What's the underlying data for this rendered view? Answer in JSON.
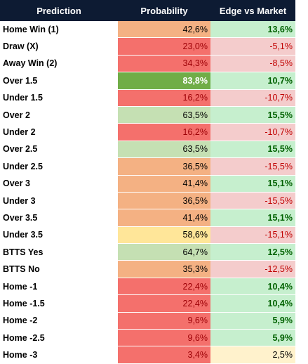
{
  "table": {
    "headers": [
      "Prediction",
      "Probability",
      "Edge vs Market"
    ],
    "rows": [
      {
        "prediction": "Home Win (1)",
        "probability": "42,6%",
        "edge": "13,6%",
        "prob_fill": "#f4b183",
        "prob_text": "#000000",
        "edge_fill": "#c6efce",
        "edge_text": "#006100"
      },
      {
        "prediction": "Draw (X)",
        "probability": "23,0%",
        "edge": "-5,1%",
        "prob_fill": "#f4706c",
        "prob_text": "#9c0006",
        "edge_fill": "#f4cccc",
        "edge_text": "#c00000"
      },
      {
        "prediction": "Away Win (2)",
        "probability": "34,3%",
        "edge": "-8,5%",
        "prob_fill": "#f4706c",
        "prob_text": "#9c0006",
        "edge_fill": "#f4cccc",
        "edge_text": "#c00000"
      },
      {
        "prediction": "Over 1.5",
        "probability": "83,8%",
        "edge": "10,7%",
        "prob_fill": "#70ad47",
        "prob_text": "#ffffff",
        "edge_fill": "#c6efce",
        "edge_text": "#006100"
      },
      {
        "prediction": "Under 1.5",
        "probability": "16,2%",
        "edge": "-10,7%",
        "prob_fill": "#f4706c",
        "prob_text": "#9c0006",
        "edge_fill": "#f4cccc",
        "edge_text": "#c00000"
      },
      {
        "prediction": "Over 2",
        "probability": "63,5%",
        "edge": "15,5%",
        "prob_fill": "#c5e0b3",
        "prob_text": "#000000",
        "edge_fill": "#c6efce",
        "edge_text": "#006100"
      },
      {
        "prediction": "Under 2",
        "probability": "16,2%",
        "edge": "-10,7%",
        "prob_fill": "#f4706c",
        "prob_text": "#9c0006",
        "edge_fill": "#f4cccc",
        "edge_text": "#c00000"
      },
      {
        "prediction": "Over 2.5",
        "probability": "63,5%",
        "edge": "15,5%",
        "prob_fill": "#c5e0b3",
        "prob_text": "#000000",
        "edge_fill": "#c6efce",
        "edge_text": "#006100"
      },
      {
        "prediction": "Under 2.5",
        "probability": "36,5%",
        "edge": "-15,5%",
        "prob_fill": "#f4b183",
        "prob_text": "#000000",
        "edge_fill": "#f4cccc",
        "edge_text": "#c00000"
      },
      {
        "prediction": "Over 3",
        "probability": "41,4%",
        "edge": "15,1%",
        "prob_fill": "#f4b183",
        "prob_text": "#000000",
        "edge_fill": "#c6efce",
        "edge_text": "#006100"
      },
      {
        "prediction": "Under 3",
        "probability": "36,5%",
        "edge": "-15,5%",
        "prob_fill": "#f4b183",
        "prob_text": "#000000",
        "edge_fill": "#f4cccc",
        "edge_text": "#c00000"
      },
      {
        "prediction": "Over 3.5",
        "probability": "41,4%",
        "edge": "15,1%",
        "prob_fill": "#f4b183",
        "prob_text": "#000000",
        "edge_fill": "#c6efce",
        "edge_text": "#006100"
      },
      {
        "prediction": "Under 3.5",
        "probability": "58,6%",
        "edge": "-15,1%",
        "prob_fill": "#ffe699",
        "prob_text": "#000000",
        "edge_fill": "#f4cccc",
        "edge_text": "#c00000"
      },
      {
        "prediction": "BTTS Yes",
        "probability": "64,7%",
        "edge": "12,5%",
        "prob_fill": "#c5e0b3",
        "prob_text": "#000000",
        "edge_fill": "#c6efce",
        "edge_text": "#006100"
      },
      {
        "prediction": "BTTS No",
        "probability": "35,3%",
        "edge": "-12,5%",
        "prob_fill": "#f4b183",
        "prob_text": "#000000",
        "edge_fill": "#f4cccc",
        "edge_text": "#c00000"
      },
      {
        "prediction": "Home -1",
        "probability": "22,4%",
        "edge": "10,4%",
        "prob_fill": "#f4706c",
        "prob_text": "#9c0006",
        "edge_fill": "#c6efce",
        "edge_text": "#006100"
      },
      {
        "prediction": "Home -1.5",
        "probability": "22,4%",
        "edge": "10,4%",
        "prob_fill": "#f4706c",
        "prob_text": "#9c0006",
        "edge_fill": "#c6efce",
        "edge_text": "#006100"
      },
      {
        "prediction": "Home -2",
        "probability": "9,6%",
        "edge": "5,9%",
        "prob_fill": "#f4706c",
        "prob_text": "#9c0006",
        "edge_fill": "#c6efce",
        "edge_text": "#006100"
      },
      {
        "prediction": "Home -2.5",
        "probability": "9,6%",
        "edge": "5,9%",
        "prob_fill": "#f4706c",
        "prob_text": "#9c0006",
        "edge_fill": "#c6efce",
        "edge_text": "#006100"
      },
      {
        "prediction": "Home -3",
        "probability": "3,4%",
        "edge": "2,5%",
        "prob_fill": "#f4706c",
        "prob_text": "#9c0006",
        "edge_fill": "#fff2cc",
        "edge_text": "#000000"
      }
    ]
  }
}
